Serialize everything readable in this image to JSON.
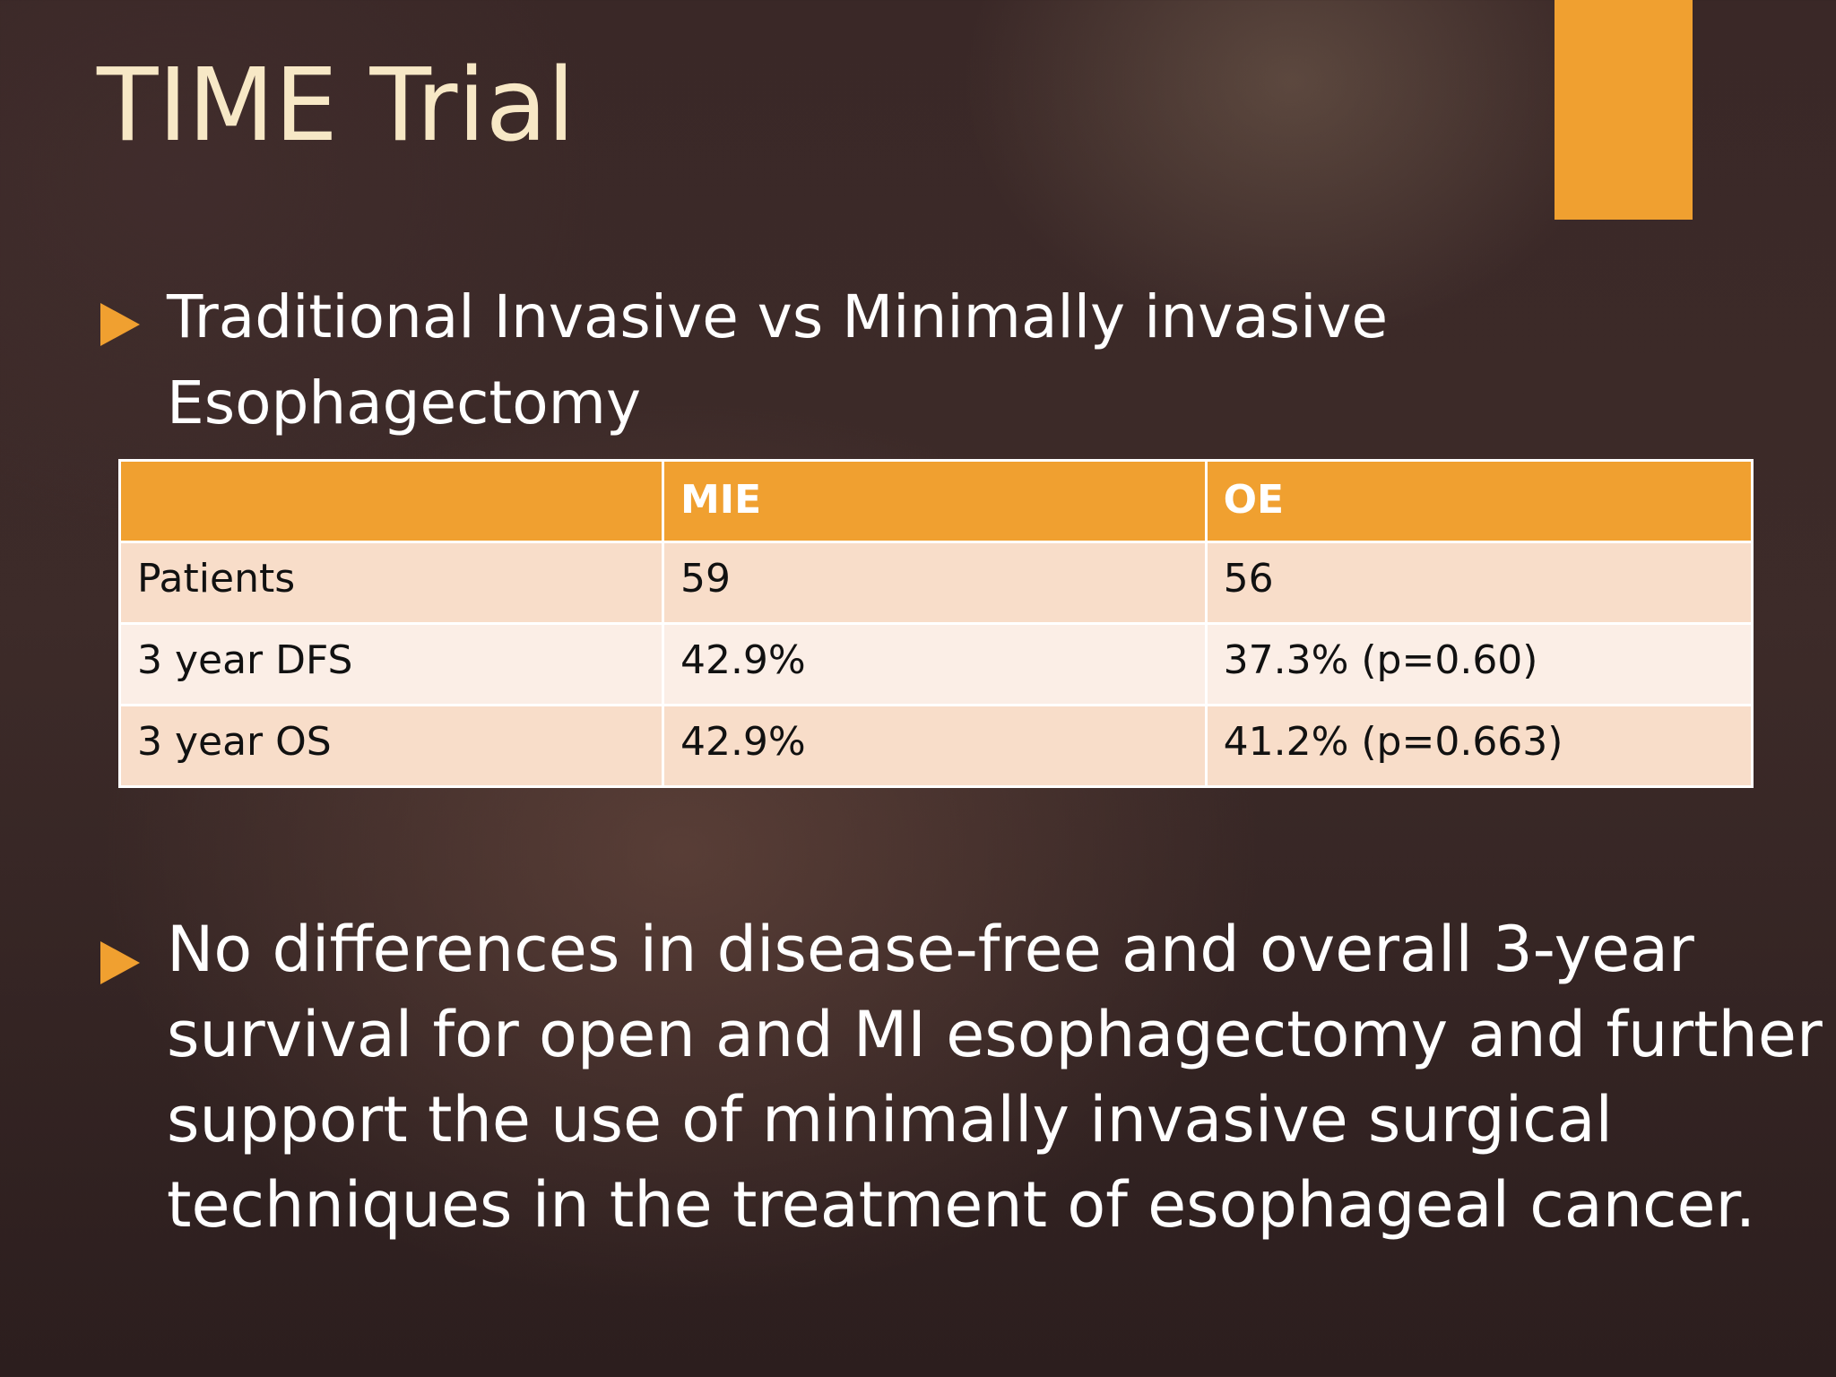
{
  "slide": {
    "title": "TIME Trial",
    "accent_color": "#f0a030",
    "bullets": [
      {
        "marker_icon": "triangle-right-icon",
        "text": "Traditional Invasive vs Minimally invasive Esophagectomy"
      },
      {
        "marker_icon": "triangle-right-icon",
        "text": "No differences in disease-free and overall 3-year survival for open and MI esophagectomy and further support the use of minimally invasive surgical techniques in the treatment of esophageal cancer."
      }
    ],
    "table": {
      "headers": [
        "",
        "MIE",
        "OE"
      ],
      "rows": [
        [
          "Patients",
          "59",
          "56"
        ],
        [
          "3 year DFS",
          "42.9%",
          "37.3% (p=0.60)"
        ],
        [
          "3 year OS",
          "42.9%",
          "41.2% (p=0.663)"
        ]
      ]
    }
  }
}
